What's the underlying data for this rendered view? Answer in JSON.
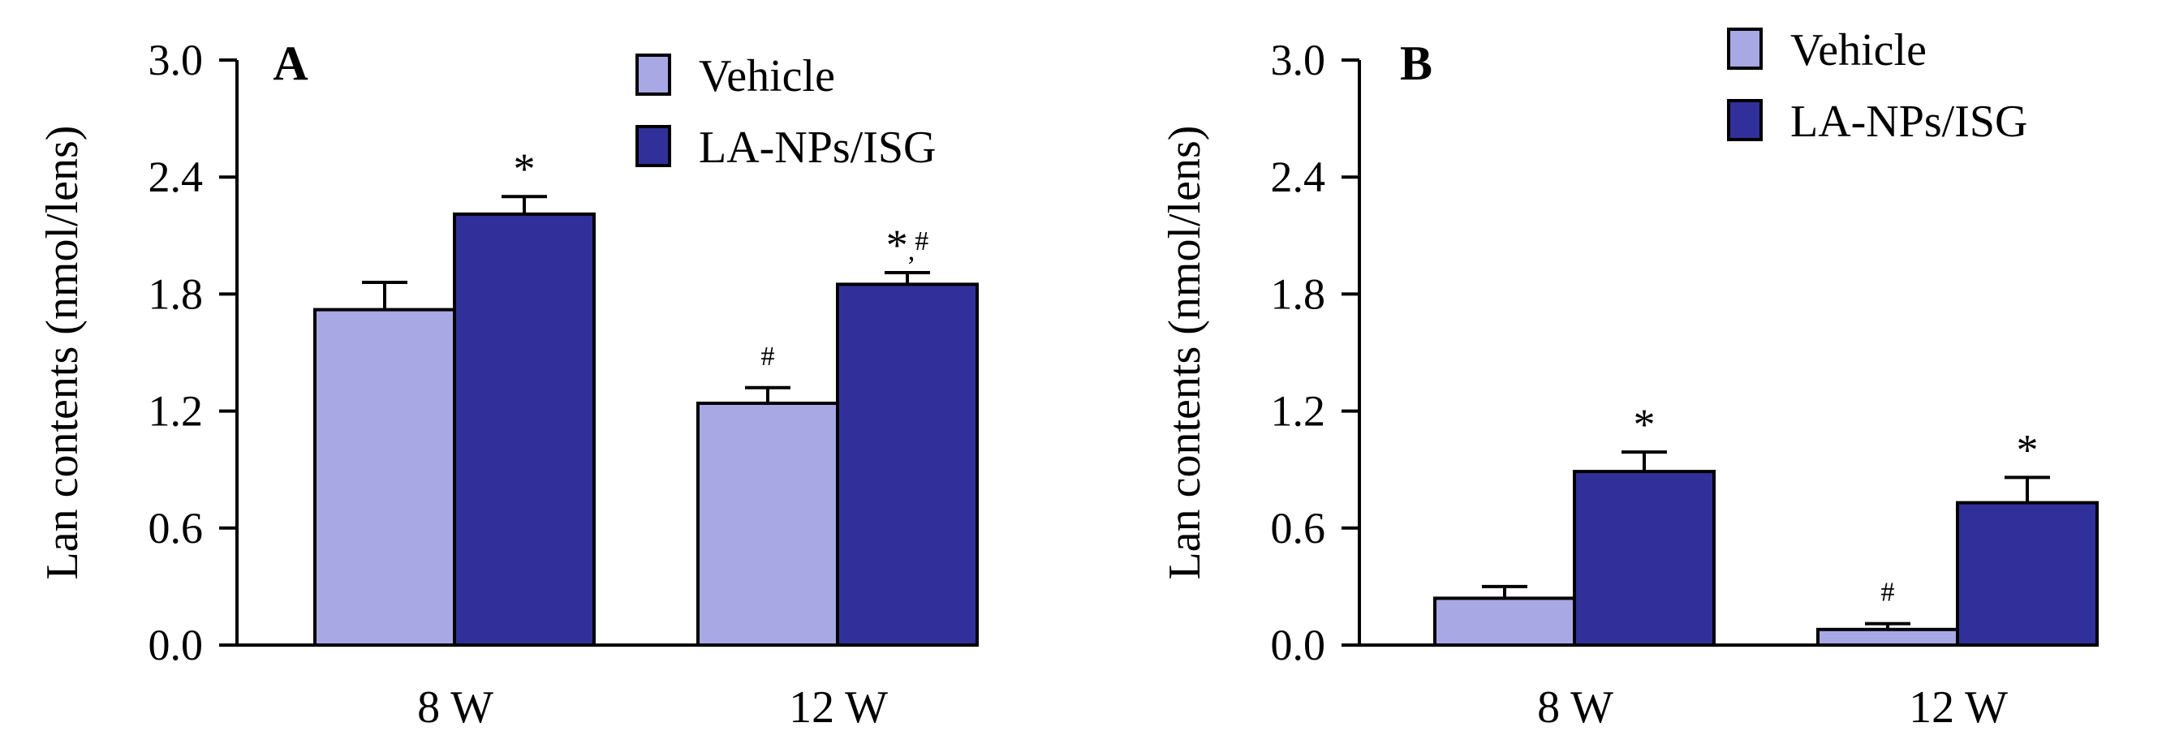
{
  "chart_data": [
    {
      "type": "bar",
      "panel_label": "A",
      "categories": [
        "8 W",
        "12 W"
      ],
      "series": [
        {
          "name": "Vehicle",
          "color": "#a8a8e4",
          "values": [
            1.72,
            1.24
          ],
          "errors": [
            0.14,
            0.08
          ],
          "annotations": [
            "",
            "#"
          ]
        },
        {
          "name": "LA-NPs/ISG",
          "color": "#31309a",
          "values": [
            2.21,
            1.85
          ],
          "errors": [
            0.09,
            0.06
          ],
          "annotations": [
            "*",
            "*,#"
          ]
        }
      ],
      "ylabel": "Lan contents (nmol/lens)",
      "ylim": [
        0,
        3.0
      ],
      "yticks": [
        "0.0",
        "0.6",
        "1.2",
        "1.8",
        "2.4",
        "3.0"
      ],
      "legend_position": "top-right"
    },
    {
      "type": "bar",
      "panel_label": "B",
      "categories": [
        "8 W",
        "12 W"
      ],
      "series": [
        {
          "name": "Vehicle",
          "color": "#a8a8e4",
          "values": [
            0.24,
            0.08
          ],
          "errors": [
            0.06,
            0.03
          ],
          "annotations": [
            "",
            "#"
          ]
        },
        {
          "name": "LA-NPs/ISG",
          "color": "#31309a",
          "values": [
            0.89,
            0.73
          ],
          "errors": [
            0.1,
            0.13
          ],
          "annotations": [
            "*",
            "*"
          ]
        }
      ],
      "ylabel": "Lan contents (nmol/lens)",
      "ylim": [
        0,
        3.0
      ],
      "yticks": [
        "0.0",
        "0.6",
        "1.2",
        "1.8",
        "2.4",
        "3.0"
      ],
      "legend_position": "top-right"
    }
  ]
}
